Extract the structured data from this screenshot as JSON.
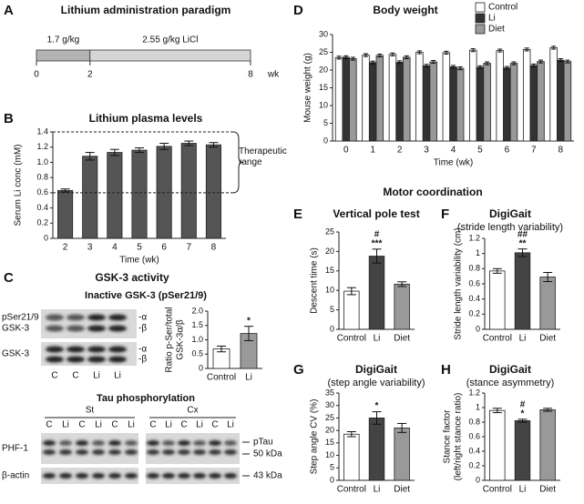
{
  "labels": [
    "A",
    "B",
    "C",
    "D",
    "E",
    "F",
    "G",
    "H"
  ],
  "paradigm": {
    "title": "Lithium administration paradigm",
    "xlim": [
      0,
      8
    ],
    "ticks": [
      0,
      2,
      8
    ],
    "unit": "wk",
    "segments": [
      {
        "label": "1.7 g/kg",
        "start": 0,
        "end": 2,
        "color": "#b3b3b3"
      },
      {
        "label": "2.55 g/kg  LiCl",
        "start": 2,
        "end": 8,
        "color": "#d6d6d6"
      }
    ]
  },
  "blots": {
    "title": "GSK-3 activity",
    "subtitle": "Inactive GSK-3 (pSer21/9)",
    "gsk_rows": [
      {
        "label": [
          "pSer21/9",
          "GSK-3"
        ],
        "bands": [
          "-α",
          "-β"
        ]
      },
      {
        "label": [
          "GSK-3"
        ],
        "bands": [
          "-α",
          "-β"
        ]
      }
    ],
    "gsk_lanes": [
      "C",
      "C",
      "Li",
      "Li"
    ],
    "tau": {
      "title": "Tau phosphorylation",
      "regions": [
        "St",
        "Cx"
      ],
      "lanes": [
        "C",
        "Li",
        "C",
        "Li",
        "C",
        "Li"
      ],
      "rows": [
        "PHF-1",
        "β-actin"
      ],
      "markers": [
        "pTau",
        "50 kDa",
        "43 kDa"
      ]
    }
  },
  "motor_title": "Motor coordination",
  "chart_data": [
    {
      "type": "bar",
      "title": "Lithium plasma levels",
      "x_label": "Time (wk)",
      "y_label": "Serum Li conc (mM)",
      "categories": [
        "2",
        "3",
        "4",
        "5",
        "6",
        "7",
        "8"
      ],
      "values": [
        0.63,
        1.08,
        1.13,
        1.16,
        1.21,
        1.25,
        1.23
      ],
      "errors": [
        0.02,
        0.05,
        0.04,
        0.03,
        0.04,
        0.03,
        0.03
      ],
      "color": "#555555",
      "ylim": [
        0,
        1.4
      ],
      "yticks": [
        0,
        0.2,
        0.4,
        0.6,
        0.8,
        {
          "value": 1,
          "label": "1.0"
        },
        1.2,
        1.4
      ],
      "reference_range": {
        "label": [
          "Therapeutic",
          "range"
        ],
        "values": [
          0.6,
          1.4
        ]
      }
    },
    {
      "type": "bar",
      "y_label": [
        "Ratio p-Ser/total",
        "GSK-3α/β"
      ],
      "categories": [
        "Control",
        "Li"
      ],
      "values": [
        0.68,
        1.22
      ],
      "errors": [
        0.1,
        0.25
      ],
      "colors": [
        "#ffffff",
        "#999999"
      ],
      "ylim": [
        0,
        2
      ],
      "yticks": [
        0,
        0.5,
        {
          "value": 1,
          "label": "1.0"
        },
        1.5,
        {
          "value": 2,
          "label": "2.0"
        }
      ],
      "annotations": [
        {
          "category": "Li",
          "lines": [
            "*"
          ]
        }
      ]
    },
    {
      "type": "bar",
      "title": "Body weight",
      "x_label": "Time (wk)",
      "y_label": "Mouse weight (g)",
      "categories": [
        "0",
        "1",
        "2",
        "3",
        "4",
        "5",
        "6",
        "7",
        "8"
      ],
      "legend": "top-right",
      "series": [
        {
          "name": "Control",
          "color": "#ffffff",
          "values": [
            23.5,
            24.2,
            24.4,
            25.0,
            24.9,
            25.6,
            25.5,
            25.8,
            26.3
          ],
          "errors": [
            0.4,
            0.4,
            0.4,
            0.4,
            0.4,
            0.4,
            0.4,
            0.4,
            0.4
          ]
        },
        {
          "name": "Li",
          "color": "#333333",
          "values": [
            23.6,
            22.1,
            22.2,
            21.2,
            20.9,
            20.8,
            20.6,
            21.3,
            22.8
          ],
          "errors": [
            0.4,
            0.4,
            0.4,
            0.4,
            0.4,
            0.4,
            0.4,
            0.4,
            0.4
          ]
        },
        {
          "name": "Diet",
          "color": "#999999",
          "values": [
            23.2,
            24.1,
            23.6,
            22.3,
            20.5,
            21.9,
            21.9,
            22.4,
            22.4
          ],
          "errors": [
            0.4,
            0.4,
            0.4,
            0.4,
            0.4,
            0.4,
            0.4,
            0.4,
            0.4
          ]
        }
      ],
      "ylim": [
        0,
        30
      ],
      "yticks": [
        0,
        5,
        10,
        15,
        20,
        25,
        30
      ]
    },
    {
      "type": "bar",
      "title": "Vertical pole test",
      "y_label": "Descent time (s)",
      "categories": [
        "Control",
        "Li",
        "Diet"
      ],
      "values": [
        9.8,
        18.8,
        11.6
      ],
      "errors": [
        0.9,
        1.8,
        0.6
      ],
      "colors": [
        "#ffffff",
        "#444444",
        "#999999"
      ],
      "ylim": [
        0,
        25
      ],
      "yticks": [
        0,
        5,
        10,
        15,
        20,
        25
      ],
      "annotations": [
        {
          "category": "Li",
          "lines": [
            "#",
            "***"
          ]
        }
      ]
    },
    {
      "type": "bar",
      "title": "DigiGait",
      "subtitle": "(stride length variability)",
      "y_label": "Stride length variability (cm)",
      "categories": [
        "Control",
        "Li",
        "Diet"
      ],
      "values": [
        0.77,
        1.01,
        0.69
      ],
      "errors": [
        0.03,
        0.05,
        0.06
      ],
      "colors": [
        "#ffffff",
        "#444444",
        "#999999"
      ],
      "ylim": [
        0,
        1.2
      ],
      "yticks": [
        0,
        0.2,
        0.4,
        0.6,
        0.8,
        1,
        1.2
      ],
      "annotations": [
        {
          "category": "Li",
          "lines": [
            "##",
            "**"
          ]
        }
      ]
    },
    {
      "type": "bar",
      "title": "DigiGait",
      "subtitle": "(step angle variability)",
      "y_label": "Step angle CV (%)",
      "categories": [
        "Control",
        "Li",
        "Diet"
      ],
      "values": [
        18.5,
        25,
        21
      ],
      "errors": [
        1,
        2.5,
        1.8
      ],
      "colors": [
        "#ffffff",
        "#444444",
        "#999999"
      ],
      "ylim": [
        0,
        35
      ],
      "yticks": [
        0,
        5,
        10,
        15,
        20,
        25,
        30,
        35
      ],
      "annotations": [
        {
          "category": "Li",
          "lines": [
            "*"
          ]
        }
      ]
    },
    {
      "type": "bar",
      "title": "DigiGait",
      "subtitle": "(stance asymmetry)",
      "y_label": [
        "Stance factor",
        "(left/right stance ratio)"
      ],
      "categories": [
        "Control",
        "Li",
        "Diet"
      ],
      "values": [
        0.96,
        0.82,
        0.97
      ],
      "errors": [
        0.03,
        0.02,
        0.02
      ],
      "colors": [
        "#ffffff",
        "#444444",
        "#999999"
      ],
      "ylim": [
        0,
        1.2
      ],
      "yticks": [
        0,
        0.2,
        0.4,
        0.6,
        0.8,
        1,
        1.2
      ],
      "annotations": [
        {
          "category": "Li",
          "lines": [
            "#",
            "*"
          ]
        }
      ]
    }
  ]
}
